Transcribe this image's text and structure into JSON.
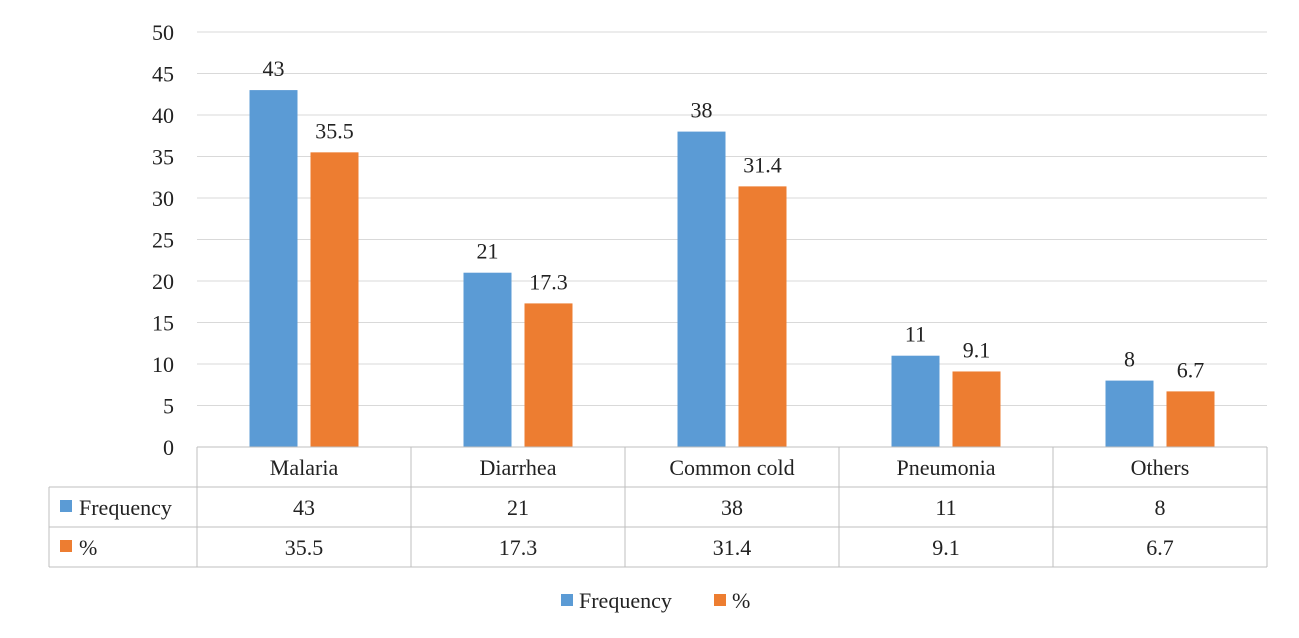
{
  "chart_data": {
    "type": "bar",
    "categories": [
      "Malaria",
      "Diarrhea",
      "Common cold",
      "Pneumonia",
      "Others"
    ],
    "series": [
      {
        "name": "Frequency",
        "values": [
          43,
          21,
          38,
          11,
          8
        ],
        "labels": [
          "43",
          "21",
          "38",
          "11",
          "8"
        ],
        "color": "#5b9bd5"
      },
      {
        "name": "%",
        "values": [
          35.5,
          17.3,
          31.4,
          9.1,
          6.7
        ],
        "labels": [
          "35.5",
          "17.3",
          "31.4",
          "9.1",
          "6.7"
        ],
        "color": "#ed7d31"
      }
    ],
    "yticks": [
      "0",
      "5",
      "10",
      "15",
      "20",
      "25",
      "30",
      "35",
      "40",
      "45",
      "50"
    ],
    "ylim": [
      0,
      50
    ],
    "grid": true,
    "data_table": true,
    "legend_position": "bottom"
  }
}
